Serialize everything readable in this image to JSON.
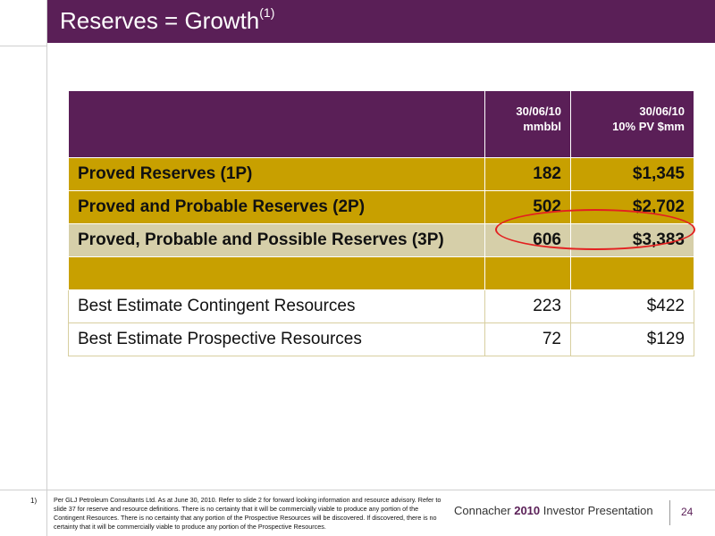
{
  "slide": {
    "title": "Reserves = Growth",
    "title_footnote": "(1)"
  },
  "table": {
    "header": {
      "col2_line1": "30/06/10",
      "col2_line2": "mmbbl",
      "col3_line1": "30/06/10",
      "col3_line2": "10% PV $mm"
    },
    "rows": [
      {
        "label": "Proved Reserves (1P)",
        "mmbbl": "182",
        "pv": "$1,345"
      },
      {
        "label": "Proved and Probable Reserves (2P)",
        "mmbbl": "502",
        "pv": "$2,702"
      },
      {
        "label": "Proved, Probable and Possible Reserves (3P)",
        "mmbbl": "606",
        "pv": "$3,383"
      },
      {
        "label": "Best Estimate Contingent Resources",
        "mmbbl": "223",
        "pv": "$422"
      },
      {
        "label": "Best Estimate Prospective Resources",
        "mmbbl": "72",
        "pv": "$129"
      }
    ]
  },
  "footer": {
    "note_number": "1)",
    "note_text": "Per GLJ Petroleum Consultants Ltd. As at June 30, 2010. Refer to slide 2 for forward looking information and resource advisory. Refer to slide 37 for reserve and resource definitions.  There is no certainty that it will be commercially viable to produce any portion of the Contingent Resources.  There is no certainty that any portion of the Prospective Resources will be discovered. If discovered, there is no certainty that it will be commercially viable to produce any portion of the Prospective Resources.",
    "company": "Connacher ",
    "year": "2010",
    "presentation": " Investor Presentation",
    "page": "24"
  },
  "colors": {
    "brand_purple": "#5a1f57",
    "gold": "#c8a000",
    "highlight_grey": "#d6cfa9",
    "circle_red": "#e32020"
  }
}
